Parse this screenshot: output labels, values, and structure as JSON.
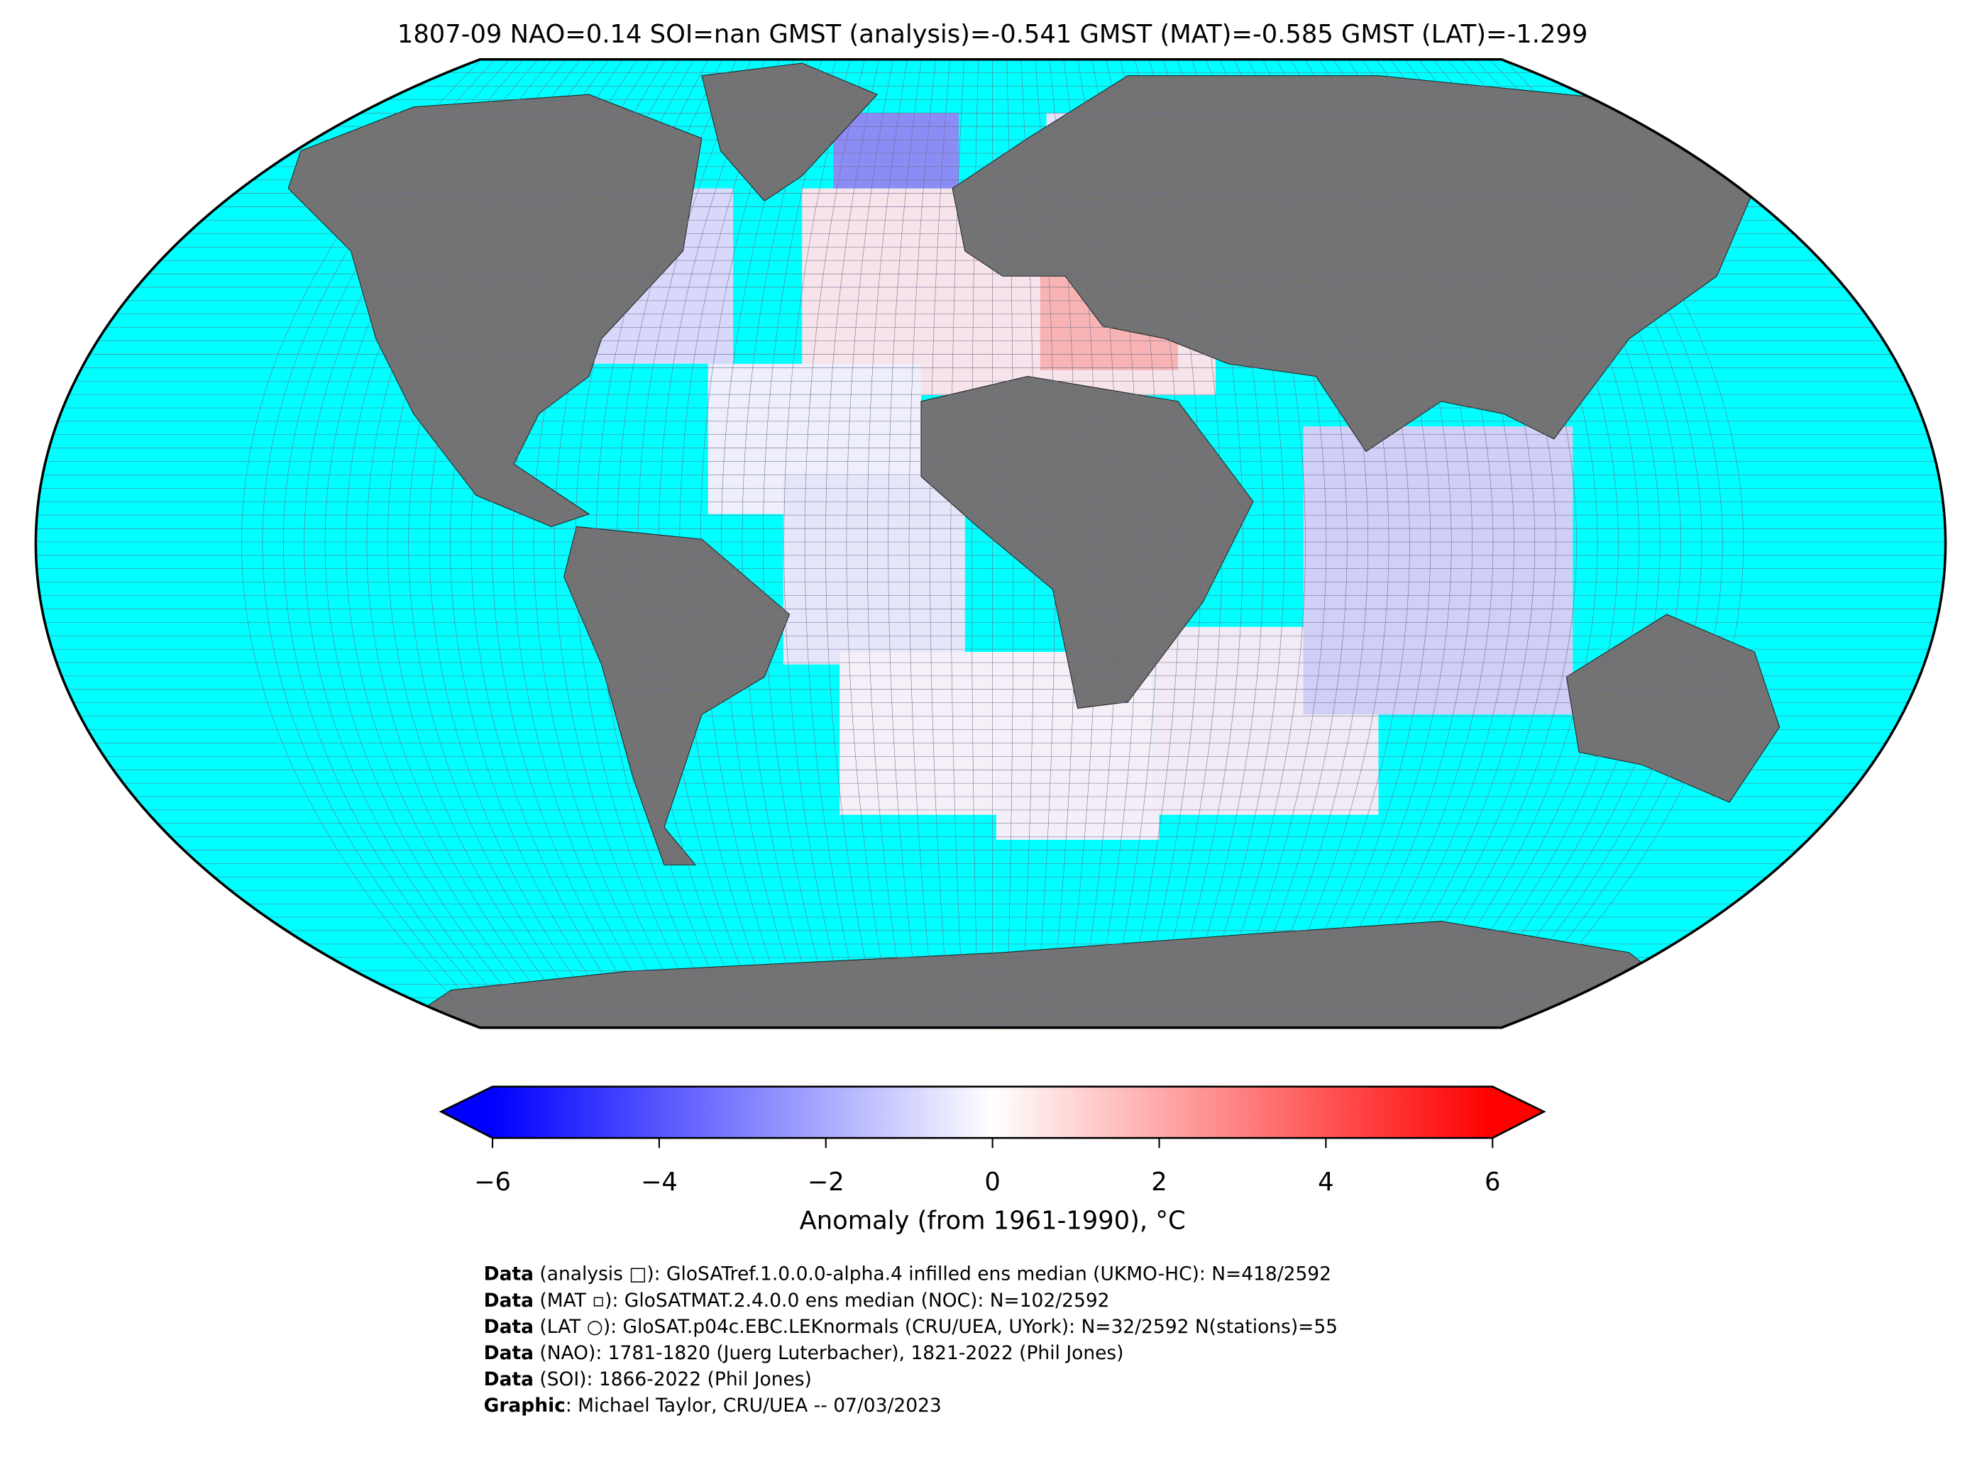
{
  "title": "1807-09 NAO=0.14 SOI=nan GMST (analysis)=-0.541 GMST (MAT)=-0.585 GMST (LAT)=-1.299",
  "colorbar": {
    "label": "Anomaly (from 1961-1990), °C",
    "lim": [
      -6,
      6
    ],
    "ticks": [
      {
        "value": -6,
        "label": "−6"
      },
      {
        "value": -4,
        "label": "−4"
      },
      {
        "value": -2,
        "label": "−2"
      },
      0,
      2,
      4,
      6
    ],
    "colors": [
      "#0000ff",
      "#ffffff",
      "#ff0000"
    ]
  },
  "credits": [
    {
      "bold": "Data",
      "text": " (analysis □): GloSATref.1.0.0.0-alpha.4 infilled ens median (UKMO-HC): N=418/2592"
    },
    {
      "bold": "Data",
      "text": " (MAT ▫): GloSATMAT.2.4.0.0 ens median (NOC): N=102/2592"
    },
    {
      "bold": "Data",
      "text": " (LAT ○): GloSAT.p04c.EBC.LEKnormals (CRU/UEA, UYork): N=32/2592 N(stations)=55"
    },
    {
      "bold": "Data",
      "text": " (NAO): 1781-1820 (Juerg Luterbacher), 1821-2022 (Phil Jones)"
    },
    {
      "bold": "Data",
      "text": " (SOI): 1866-2022 (Phil Jones)"
    },
    {
      "bold": "Graphic",
      "text": ": Michael Taylor, CRU/UEA -- 07/03/2023"
    }
  ]
}
